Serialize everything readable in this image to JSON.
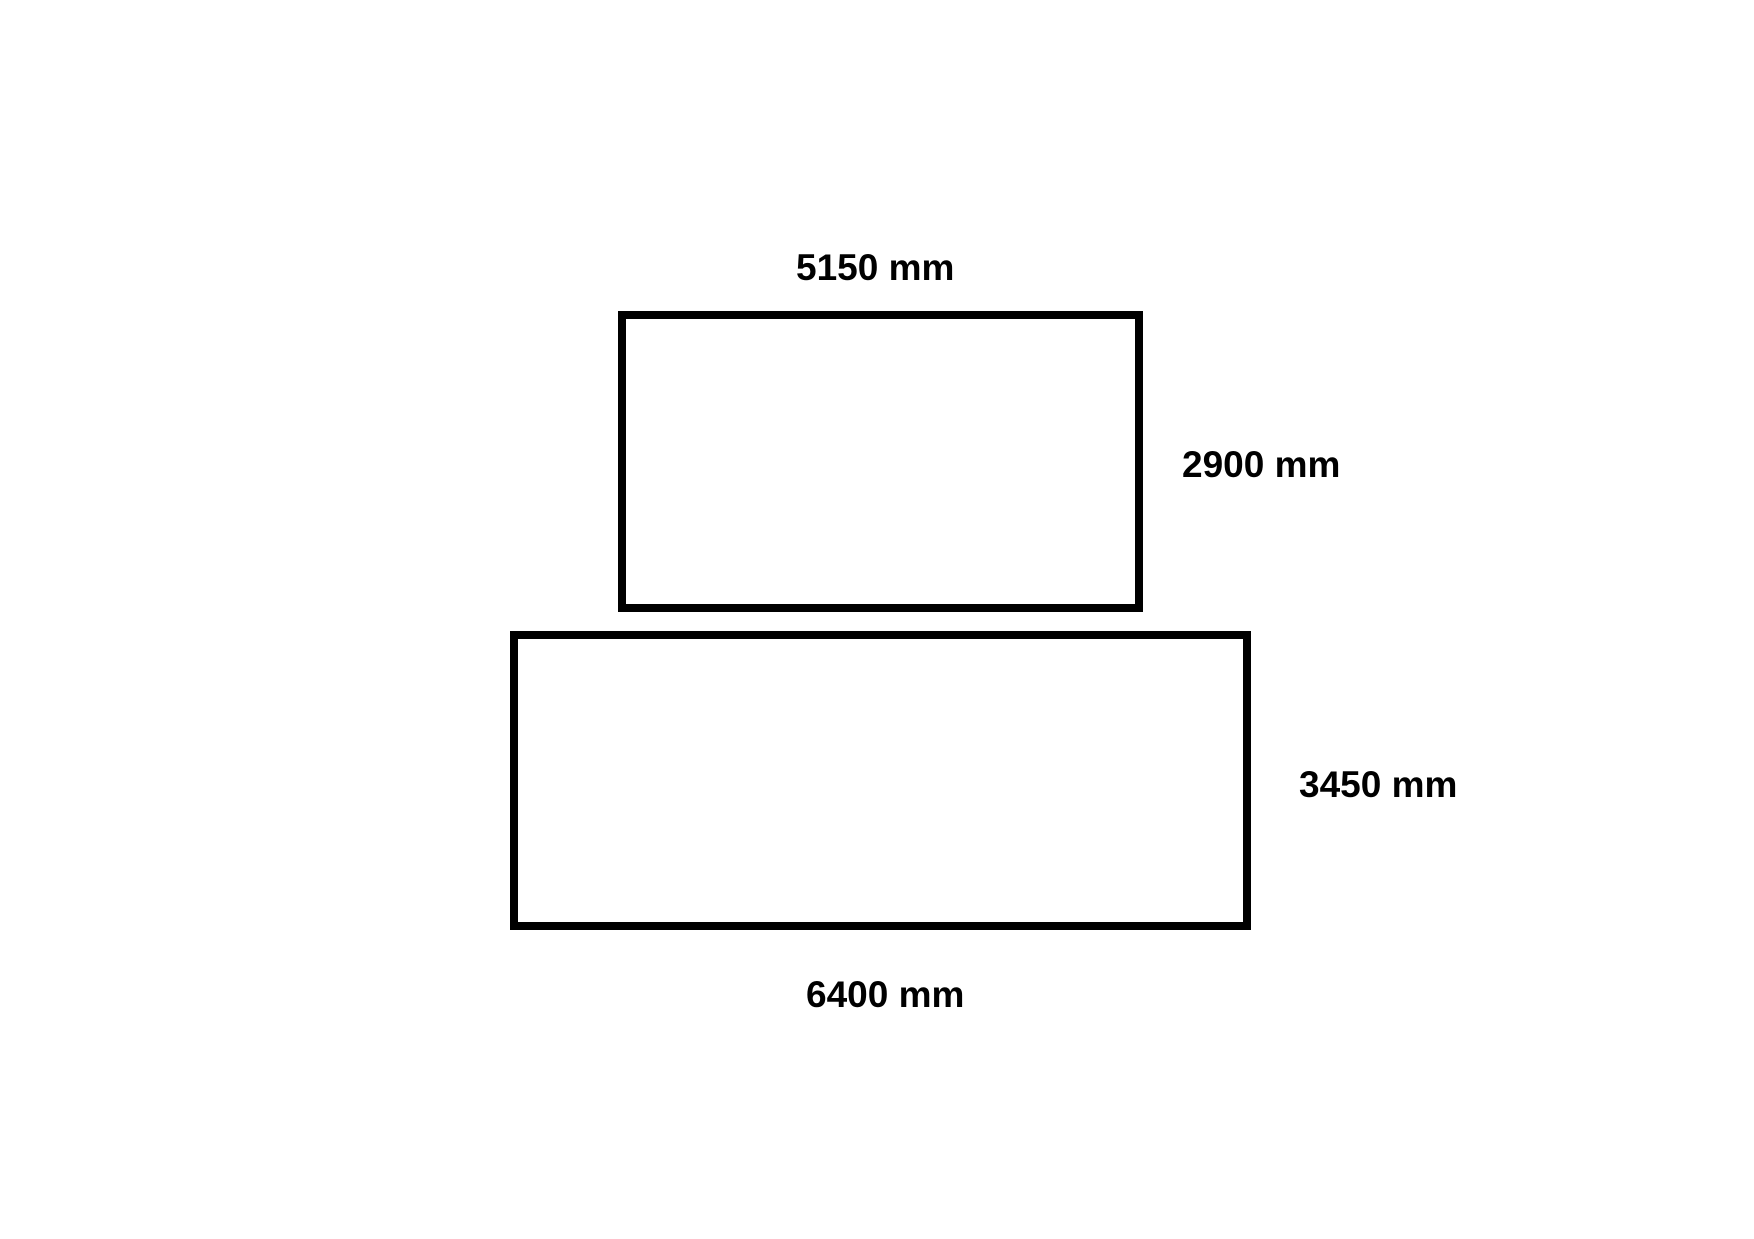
{
  "diagram": {
    "top_rectangle": {
      "width_label": "5150 mm",
      "height_label": "2900 mm"
    },
    "bottom_rectangle": {
      "width_label": "6400 mm",
      "height_label": "3450 mm"
    },
    "colors": {
      "stroke": "#000000",
      "background": "#ffffff",
      "text": "#000000"
    }
  }
}
